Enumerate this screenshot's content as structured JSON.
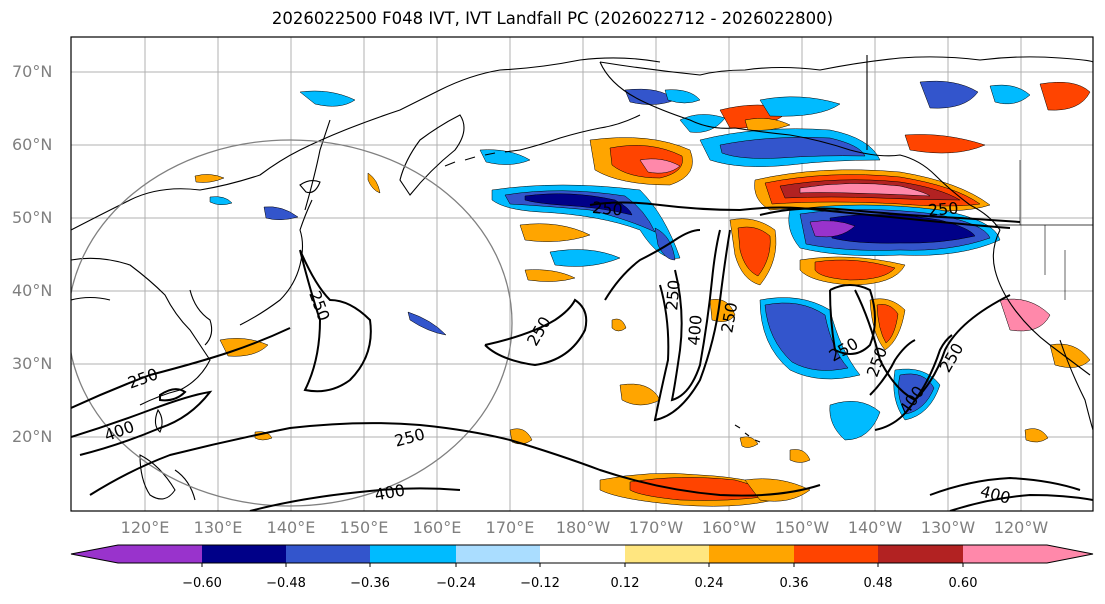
{
  "title": "2026022500 F048 IVT, IVT Landfall PC (2026022712 - 2026022800)",
  "lat_labels": [
    "70°N",
    "60°N",
    "50°N",
    "40°N",
    "30°N",
    "20°N"
  ],
  "lon_labels": [
    "120°E",
    "130°E",
    "140°E",
    "150°E",
    "160°E",
    "170°E",
    "180°W",
    "170°W",
    "160°W",
    "150°W",
    "140°W",
    "130°W",
    "120°W"
  ],
  "colorbar": {
    "tick_labels": [
      "−0.60",
      "−0.48",
      "−0.36",
      "−0.24",
      "−0.12",
      "0.12",
      "0.24",
      "0.36",
      "0.48",
      "0.60"
    ],
    "colors": [
      "#9933cc",
      "#000088",
      "#3355cc",
      "#00bbff",
      "#aaddff",
      "#ffffff",
      "#ffe680",
      "#ffa500",
      "#ff4400",
      "#b22222",
      "#ff88aa"
    ]
  },
  "contour_labels": {
    "c1": "250",
    "c2": "250",
    "c3": "250",
    "c4": "250",
    "c5": "250",
    "c6": "250",
    "c7": "250",
    "c8": "250",
    "c9": "250",
    "c10": "250",
    "c11": "250",
    "c12": "400",
    "c13": "400",
    "c14": "400",
    "c15": "400",
    "c16": "400"
  }
}
